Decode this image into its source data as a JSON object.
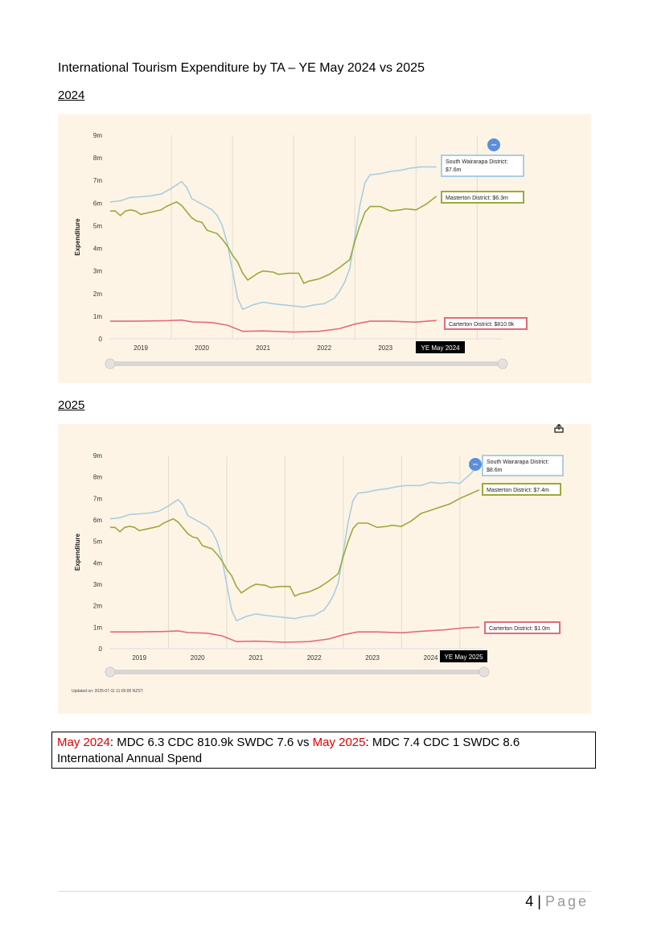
{
  "document": {
    "title": "International Tourism Expenditure by TA – YE May 2024 vs 2025",
    "section_2024": "2024",
    "section_2025": "2025",
    "summary": {
      "label_2024": "May 2024",
      "text_2024": ": MDC 6.3 CDC 810.9k SWDC 7.6 vs ",
      "label_2025": "May 2025",
      "text_2025": ": MDC 7.4 CDC 1 SWDC 8.6",
      "line2": "International Annual Spend"
    },
    "footer": {
      "page_number": "4",
      "separator": " | ",
      "page_word": "Page"
    }
  },
  "colors": {
    "background": "#fdf4e6",
    "south_wairarapa": "#a9cfe0",
    "masterton": "#9aaa3a",
    "carterton": "#e46a7a",
    "marker": "#5b8fdc",
    "summary_highlight": "#e00000"
  },
  "chart_data": [
    {
      "type": "line",
      "title": "",
      "xlabel": "",
      "ylabel": "Expenditure",
      "ylim": [
        0,
        9
      ],
      "xlim": [
        "2019-01",
        "2025-05"
      ],
      "yticks": [
        "0",
        "1m",
        "2m",
        "3m",
        "4m",
        "5m",
        "6m",
        "7m",
        "8m",
        "9m"
      ],
      "xticks": [
        "2019",
        "2020",
        "2021",
        "2022",
        "2023"
      ],
      "grid": "vertical",
      "hover_label": "YE May 2024",
      "tooltips": [
        {
          "series": "South Wairarapa District",
          "text": "South Wairarapa District:",
          "value": "$7.6m"
        },
        {
          "series": "Masterton District",
          "text": "Masterton District: $6.3m"
        },
        {
          "series": "Carterton District",
          "text": "Carterton District: $810.9k"
        }
      ],
      "series": [
        {
          "name": "South Wairarapa District",
          "color": "#a9cfe0",
          "points": [
            [
              "2019-01",
              6.05
            ],
            [
              "2019-03",
              6.1
            ],
            [
              "2019-05",
              6.25
            ],
            [
              "2019-07",
              6.28
            ],
            [
              "2019-09",
              6.32
            ],
            [
              "2019-11",
              6.4
            ],
            [
              "2020-01",
              6.65
            ],
            [
              "2020-03",
              6.95
            ],
            [
              "2020-04",
              6.7
            ],
            [
              "2020-05",
              6.2
            ],
            [
              "2020-07",
              5.95
            ],
            [
              "2020-09",
              5.7
            ],
            [
              "2020-10",
              5.45
            ],
            [
              "2020-11",
              5.0
            ],
            [
              "2020-12",
              4.2
            ],
            [
              "2021-01",
              3.0
            ],
            [
              "2021-02",
              1.8
            ],
            [
              "2021-03",
              1.3
            ],
            [
              "2021-05",
              1.5
            ],
            [
              "2021-07",
              1.62
            ],
            [
              "2021-09",
              1.55
            ],
            [
              "2021-11",
              1.5
            ],
            [
              "2022-01",
              1.45
            ],
            [
              "2022-03",
              1.4
            ],
            [
              "2022-05",
              1.5
            ],
            [
              "2022-07",
              1.55
            ],
            [
              "2022-09",
              1.8
            ],
            [
              "2022-10",
              2.1
            ],
            [
              "2022-11",
              2.5
            ],
            [
              "2022-12",
              3.1
            ],
            [
              "2023-01",
              4.5
            ],
            [
              "2023-02",
              5.9
            ],
            [
              "2023-03",
              6.9
            ],
            [
              "2023-04",
              7.25
            ],
            [
              "2023-06",
              7.3
            ],
            [
              "2023-08",
              7.4
            ],
            [
              "2023-10",
              7.45
            ],
            [
              "2023-12",
              7.55
            ],
            [
              "2024-02",
              7.6
            ],
            [
              "2024-05",
              7.6
            ]
          ]
        },
        {
          "name": "Masterton District",
          "color": "#9aaa3a",
          "points": [
            [
              "2019-01",
              5.65
            ],
            [
              "2019-02",
              5.65
            ],
            [
              "2019-03",
              5.45
            ],
            [
              "2019-04",
              5.65
            ],
            [
              "2019-05",
              5.7
            ],
            [
              "2019-06",
              5.65
            ],
            [
              "2019-07",
              5.5
            ],
            [
              "2019-09",
              5.6
            ],
            [
              "2019-11",
              5.7
            ],
            [
              "2019-12",
              5.85
            ],
            [
              "2020-02",
              6.05
            ],
            [
              "2020-03",
              5.9
            ],
            [
              "2020-05",
              5.35
            ],
            [
              "2020-06",
              5.2
            ],
            [
              "2020-07",
              5.15
            ],
            [
              "2020-08",
              4.8
            ],
            [
              "2020-10",
              4.65
            ],
            [
              "2020-11",
              4.4
            ],
            [
              "2020-12",
              4.1
            ],
            [
              "2021-01",
              3.7
            ],
            [
              "2021-02",
              3.4
            ],
            [
              "2021-03",
              2.9
            ],
            [
              "2021-04",
              2.6
            ],
            [
              "2021-06",
              2.9
            ],
            [
              "2021-07",
              3.0
            ],
            [
              "2021-09",
              2.95
            ],
            [
              "2021-10",
              2.85
            ],
            [
              "2021-12",
              2.9
            ],
            [
              "2022-02",
              2.9
            ],
            [
              "2022-03",
              2.45
            ],
            [
              "2022-04",
              2.55
            ],
            [
              "2022-06",
              2.65
            ],
            [
              "2022-08",
              2.85
            ],
            [
              "2022-10",
              3.15
            ],
            [
              "2022-12",
              3.5
            ],
            [
              "2023-01",
              4.3
            ],
            [
              "2023-02",
              5.0
            ],
            [
              "2023-03",
              5.6
            ],
            [
              "2023-04",
              5.85
            ],
            [
              "2023-06",
              5.85
            ],
            [
              "2023-08",
              5.65
            ],
            [
              "2023-10",
              5.7
            ],
            [
              "2023-11",
              5.75
            ],
            [
              "2024-01",
              5.7
            ],
            [
              "2024-03",
              5.95
            ],
            [
              "2024-05",
              6.3
            ]
          ]
        },
        {
          "name": "Carterton District",
          "color": "#e46a7a",
          "points": [
            [
              "2019-01",
              0.78
            ],
            [
              "2019-06",
              0.78
            ],
            [
              "2019-12",
              0.8
            ],
            [
              "2020-03",
              0.83
            ],
            [
              "2020-05",
              0.75
            ],
            [
              "2020-09",
              0.72
            ],
            [
              "2020-12",
              0.6
            ],
            [
              "2021-03",
              0.33
            ],
            [
              "2021-07",
              0.35
            ],
            [
              "2022-01",
              0.3
            ],
            [
              "2022-06",
              0.33
            ],
            [
              "2022-10",
              0.45
            ],
            [
              "2023-01",
              0.65
            ],
            [
              "2023-04",
              0.78
            ],
            [
              "2023-08",
              0.78
            ],
            [
              "2024-01",
              0.74
            ],
            [
              "2024-05",
              0.81
            ]
          ]
        }
      ]
    },
    {
      "type": "line",
      "title": "",
      "xlabel": "",
      "ylabel": "Expenditure",
      "ylim": [
        0,
        9
      ],
      "xlim": [
        "2019-01",
        "2025-05"
      ],
      "yticks": [
        "0",
        "1m",
        "2m",
        "3m",
        "4m",
        "5m",
        "6m",
        "7m",
        "8m",
        "9m"
      ],
      "xticks": [
        "2019",
        "2020",
        "2021",
        "2022",
        "2023",
        "2024"
      ],
      "grid": "vertical",
      "hover_label": "YE May 2025",
      "updated": "Updated on: 2025-07-11 11:00:00 NZST",
      "download_icon": "download-icon",
      "tooltips": [
        {
          "series": "South Wairarapa District",
          "text": "South Wairarapa District:",
          "value": "$8.6m"
        },
        {
          "series": "Masterton District",
          "text": "Masterton District: $7.4m"
        },
        {
          "series": "Carterton District",
          "text": "Carterton District: $1.0m"
        }
      ],
      "series": [
        {
          "name": "South Wairarapa District",
          "color": "#a9cfe0",
          "points": [
            [
              "2019-01",
              6.05
            ],
            [
              "2019-03",
              6.1
            ],
            [
              "2019-05",
              6.25
            ],
            [
              "2019-07",
              6.28
            ],
            [
              "2019-09",
              6.32
            ],
            [
              "2019-11",
              6.4
            ],
            [
              "2020-01",
              6.65
            ],
            [
              "2020-03",
              6.95
            ],
            [
              "2020-04",
              6.7
            ],
            [
              "2020-05",
              6.2
            ],
            [
              "2020-07",
              5.95
            ],
            [
              "2020-09",
              5.7
            ],
            [
              "2020-10",
              5.45
            ],
            [
              "2020-11",
              5.0
            ],
            [
              "2020-12",
              4.2
            ],
            [
              "2021-01",
              3.0
            ],
            [
              "2021-02",
              1.8
            ],
            [
              "2021-03",
              1.3
            ],
            [
              "2021-05",
              1.5
            ],
            [
              "2021-07",
              1.62
            ],
            [
              "2021-09",
              1.55
            ],
            [
              "2021-11",
              1.5
            ],
            [
              "2022-01",
              1.45
            ],
            [
              "2022-03",
              1.4
            ],
            [
              "2022-05",
              1.5
            ],
            [
              "2022-07",
              1.55
            ],
            [
              "2022-09",
              1.8
            ],
            [
              "2022-10",
              2.1
            ],
            [
              "2022-11",
              2.5
            ],
            [
              "2022-12",
              3.1
            ],
            [
              "2023-01",
              4.5
            ],
            [
              "2023-02",
              5.9
            ],
            [
              "2023-03",
              6.9
            ],
            [
              "2023-04",
              7.25
            ],
            [
              "2023-06",
              7.3
            ],
            [
              "2023-08",
              7.4
            ],
            [
              "2023-10",
              7.45
            ],
            [
              "2023-12",
              7.55
            ],
            [
              "2024-02",
              7.6
            ],
            [
              "2024-05",
              7.6
            ],
            [
              "2024-07",
              7.75
            ],
            [
              "2024-09",
              7.7
            ],
            [
              "2024-11",
              7.75
            ],
            [
              "2025-01",
              7.7
            ],
            [
              "2025-03",
              8.1
            ],
            [
              "2025-05",
              8.6
            ]
          ]
        },
        {
          "name": "Masterton District",
          "color": "#9aaa3a",
          "points": [
            [
              "2019-01",
              5.65
            ],
            [
              "2019-02",
              5.65
            ],
            [
              "2019-03",
              5.45
            ],
            [
              "2019-04",
              5.65
            ],
            [
              "2019-05",
              5.7
            ],
            [
              "2019-06",
              5.65
            ],
            [
              "2019-07",
              5.5
            ],
            [
              "2019-09",
              5.6
            ],
            [
              "2019-11",
              5.7
            ],
            [
              "2019-12",
              5.85
            ],
            [
              "2020-02",
              6.05
            ],
            [
              "2020-03",
              5.9
            ],
            [
              "2020-05",
              5.35
            ],
            [
              "2020-06",
              5.2
            ],
            [
              "2020-07",
              5.15
            ],
            [
              "2020-08",
              4.8
            ],
            [
              "2020-10",
              4.65
            ],
            [
              "2020-11",
              4.4
            ],
            [
              "2020-12",
              4.1
            ],
            [
              "2021-01",
              3.7
            ],
            [
              "2021-02",
              3.4
            ],
            [
              "2021-03",
              2.9
            ],
            [
              "2021-04",
              2.6
            ],
            [
              "2021-06",
              2.9
            ],
            [
              "2021-07",
              3.0
            ],
            [
              "2021-09",
              2.95
            ],
            [
              "2021-10",
              2.85
            ],
            [
              "2021-12",
              2.9
            ],
            [
              "2022-02",
              2.9
            ],
            [
              "2022-03",
              2.45
            ],
            [
              "2022-04",
              2.55
            ],
            [
              "2022-06",
              2.65
            ],
            [
              "2022-08",
              2.85
            ],
            [
              "2022-10",
              3.15
            ],
            [
              "2022-12",
              3.5
            ],
            [
              "2023-01",
              4.3
            ],
            [
              "2023-02",
              5.0
            ],
            [
              "2023-03",
              5.6
            ],
            [
              "2023-04",
              5.85
            ],
            [
              "2023-06",
              5.85
            ],
            [
              "2023-08",
              5.65
            ],
            [
              "2023-10",
              5.7
            ],
            [
              "2023-11",
              5.75
            ],
            [
              "2024-01",
              5.7
            ],
            [
              "2024-03",
              5.95
            ],
            [
              "2024-05",
              6.3
            ],
            [
              "2024-07",
              6.45
            ],
            [
              "2024-09",
              6.6
            ],
            [
              "2024-11",
              6.75
            ],
            [
              "2025-01",
              7.0
            ],
            [
              "2025-03",
              7.2
            ],
            [
              "2025-05",
              7.4
            ]
          ]
        },
        {
          "name": "Carterton District",
          "color": "#e46a7a",
          "points": [
            [
              "2019-01",
              0.78
            ],
            [
              "2019-06",
              0.78
            ],
            [
              "2019-12",
              0.8
            ],
            [
              "2020-03",
              0.83
            ],
            [
              "2020-05",
              0.75
            ],
            [
              "2020-09",
              0.72
            ],
            [
              "2020-12",
              0.6
            ],
            [
              "2021-03",
              0.33
            ],
            [
              "2021-07",
              0.35
            ],
            [
              "2022-01",
              0.3
            ],
            [
              "2022-06",
              0.33
            ],
            [
              "2022-10",
              0.45
            ],
            [
              "2023-01",
              0.65
            ],
            [
              "2023-04",
              0.78
            ],
            [
              "2023-08",
              0.78
            ],
            [
              "2024-01",
              0.74
            ],
            [
              "2024-05",
              0.81
            ],
            [
              "2024-10",
              0.88
            ],
            [
              "2025-02",
              0.97
            ],
            [
              "2025-05",
              1.0
            ]
          ]
        }
      ]
    }
  ]
}
